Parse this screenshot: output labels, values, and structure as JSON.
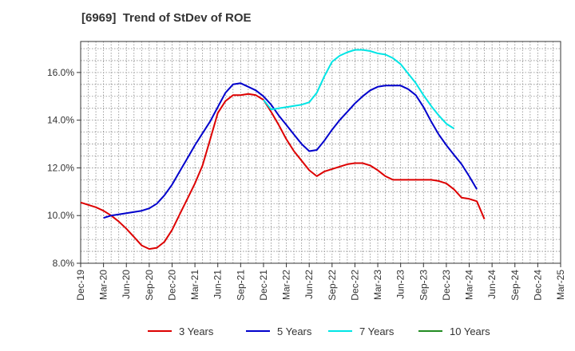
{
  "chart_data": {
    "type": "line",
    "title": "[6969]  Trend of StDev of ROE",
    "xlabel": "",
    "ylabel": "",
    "ylim": [
      8.0,
      17.3
    ],
    "y_ticks": [
      "8.0%",
      "10.0%",
      "12.0%",
      "14.0%",
      "16.0%"
    ],
    "y_tick_values": [
      8,
      10,
      12,
      14,
      16
    ],
    "x_ticks": [
      "Dec-19",
      "Mar-20",
      "Jun-20",
      "Sep-20",
      "Dec-20",
      "Mar-21",
      "Jun-21",
      "Sep-21",
      "Dec-21",
      "Mar-22",
      "Jun-22",
      "Sep-22",
      "Dec-22",
      "Mar-23",
      "Jun-23",
      "Sep-23",
      "Dec-23",
      "Mar-24",
      "Jun-24",
      "Sep-24",
      "Dec-24",
      "Mar-25"
    ],
    "grid": true,
    "legend_position": "bottom",
    "series": [
      {
        "name": "3 Years",
        "color": "#dd0000",
        "start_index": 0,
        "values": [
          10.55,
          10.45,
          10.35,
          10.2,
          10.0,
          9.75,
          9.45,
          9.1,
          8.75,
          8.6,
          8.65,
          8.9,
          9.4,
          10.05,
          10.7,
          11.35,
          12.1,
          13.2,
          14.3,
          14.8,
          15.05,
          15.05,
          15.1,
          15.05,
          14.85,
          14.35,
          13.8,
          13.2,
          12.7,
          12.3,
          11.9,
          11.65,
          11.85,
          11.95,
          12.05,
          12.15,
          12.2,
          12.2,
          12.1,
          11.9,
          11.65,
          11.5,
          11.5,
          11.5,
          11.5,
          11.5,
          11.5,
          11.45,
          11.35,
          11.1,
          10.75,
          10.7,
          10.6,
          9.85
        ]
      },
      {
        "name": "5 Years",
        "color": "#0000cc",
        "start_index": 3,
        "values": [
          9.9,
          10.0,
          10.05,
          10.1,
          10.15,
          10.2,
          10.3,
          10.5,
          10.85,
          11.3,
          11.85,
          12.4,
          12.95,
          13.45,
          13.95,
          14.55,
          15.15,
          15.5,
          15.55,
          15.4,
          15.25,
          15.0,
          14.65,
          14.2,
          13.8,
          13.4,
          13.0,
          12.7,
          12.75,
          13.15,
          13.6,
          14.0,
          14.35,
          14.7,
          15.0,
          15.25,
          15.4,
          15.45,
          15.45,
          15.45,
          15.3,
          15.05,
          14.55,
          13.95,
          13.4,
          12.95,
          12.55,
          12.15,
          11.65,
          11.1
        ]
      },
      {
        "name": "7 Years",
        "color": "#00e5e5",
        "start_index": 24,
        "values": [
          14.85,
          14.45,
          14.5,
          14.55,
          14.6,
          14.65,
          14.75,
          15.15,
          15.85,
          16.45,
          16.7,
          16.85,
          16.95,
          16.95,
          16.9,
          16.8,
          16.75,
          16.6,
          16.35,
          15.95,
          15.55,
          15.05,
          14.6,
          14.2,
          13.85,
          13.65
        ]
      },
      {
        "name": "10 Years",
        "color": "#228b22",
        "start_index": 0,
        "values": []
      }
    ]
  }
}
